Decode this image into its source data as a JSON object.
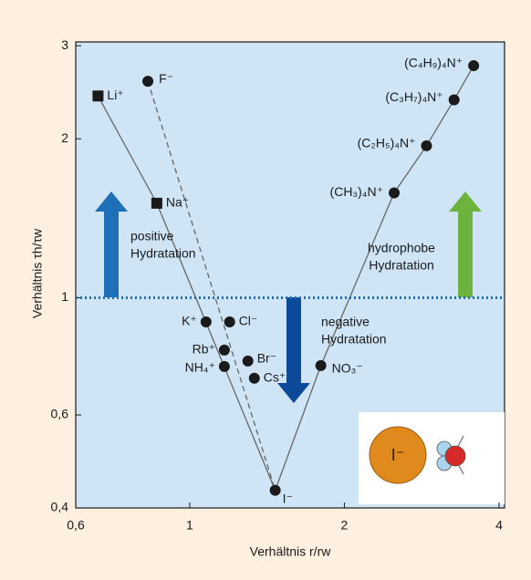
{
  "chart_data": {
    "type": "scatter",
    "x_label": "Verhältnis r/rw",
    "y_label": "Verhältnis τh/τw",
    "xscale": "log",
    "yscale": "log",
    "xlim": [
      0.6,
      4.1
    ],
    "ylim": [
      0.4,
      3.05
    ],
    "xticks": [
      {
        "value": 0.6,
        "label": "0,6"
      },
      1,
      2,
      4
    ],
    "yticks": [
      {
        "value": 0.4,
        "label": "0,4"
      },
      {
        "value": 0.6,
        "label": "0,6"
      },
      1,
      2,
      3
    ],
    "reference_line": 1,
    "color": "#1a1a1a",
    "points": [
      {
        "label": "Li⁺",
        "x": 0.663,
        "y": 2.41,
        "marker": "square"
      },
      {
        "label": "Na⁺",
        "x": 0.863,
        "y": 1.51,
        "marker": "square"
      },
      {
        "label": "F⁻",
        "x": 0.829,
        "y": 2.57,
        "marker": "circle"
      },
      {
        "label": "K⁺",
        "x": 1.076,
        "y": 0.9,
        "marker": "circle"
      },
      {
        "label": "Cl⁻",
        "x": 1.196,
        "y": 0.9,
        "marker": "circle"
      },
      {
        "label": "Rb⁺",
        "x": 1.168,
        "y": 0.796,
        "marker": "circle"
      },
      {
        "label": "NH₄⁺",
        "x": 1.168,
        "y": 0.741,
        "marker": "circle"
      },
      {
        "label": "Br⁻",
        "x": 1.298,
        "y": 0.759,
        "marker": "circle"
      },
      {
        "label": "Cs⁺",
        "x": 1.336,
        "y": 0.704,
        "marker": "circle"
      },
      {
        "label": "I⁻",
        "x": 1.467,
        "y": 0.432,
        "marker": "circle"
      },
      {
        "label": "NO₃⁻",
        "x": 1.8,
        "y": 0.744,
        "marker": "circle"
      },
      {
        "label": "(CH₃)₄N⁺",
        "x": 2.5,
        "y": 1.58,
        "marker": "circle"
      },
      {
        "label": "(C₂H₅)₄N⁺",
        "x": 2.89,
        "y": 1.94,
        "marker": "circle"
      },
      {
        "label": "(C₃H₇)₄N⁺",
        "x": 3.27,
        "y": 2.37,
        "marker": "circle"
      },
      {
        "label": "(C₄H₉)₄N⁺",
        "x": 3.57,
        "y": 2.75,
        "marker": "circle"
      }
    ],
    "annotations": [
      {
        "lines": [
          "positive",
          "Hydratation"
        ]
      },
      {
        "lines": [
          "negative",
          "Hydratation"
        ]
      },
      {
        "lines": [
          "hydrophobe",
          "Hydratation"
        ]
      }
    ],
    "inset_label": "I⁻"
  }
}
